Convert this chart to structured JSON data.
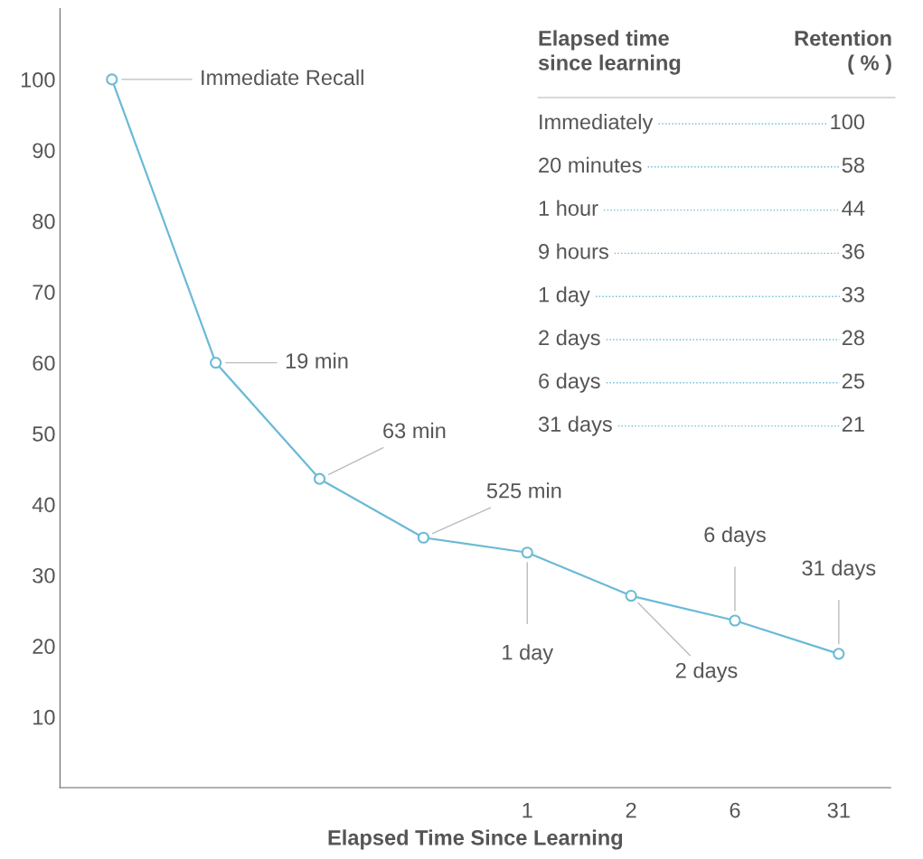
{
  "chart_data": {
    "type": "line",
    "xlabel": "Elapsed Time Since Learning",
    "categories": [
      null,
      null,
      null,
      null,
      "1",
      "2",
      "6",
      "31"
    ],
    "series": [
      {
        "color": "#6bbad6",
        "values": [
          100,
          60,
          43.6,
          35.3,
          33.2,
          27.1,
          23.6,
          18.9
        ]
      }
    ],
    "marker": "circle",
    "line_style": "solid",
    "grid": false,
    "ylim": [
      0,
      110
    ],
    "yticks": [
      10,
      20,
      30,
      40,
      50,
      60,
      70,
      80,
      90,
      100
    ],
    "annotations": [
      "Immediate Recall",
      "19 min",
      "63 min",
      "525 min",
      "1 day",
      "2 days",
      "6 days",
      "31 days",
      "Elapsed time\nsince learning",
      "Retention\n( % )",
      "Immediately",
      "100",
      "20 minutes",
      "58",
      "1 hour",
      "44",
      "9 hours",
      "36",
      "1 day",
      "33",
      "2 days",
      "28",
      "6 days",
      "25",
      "31 days",
      "21"
    ]
  }
}
